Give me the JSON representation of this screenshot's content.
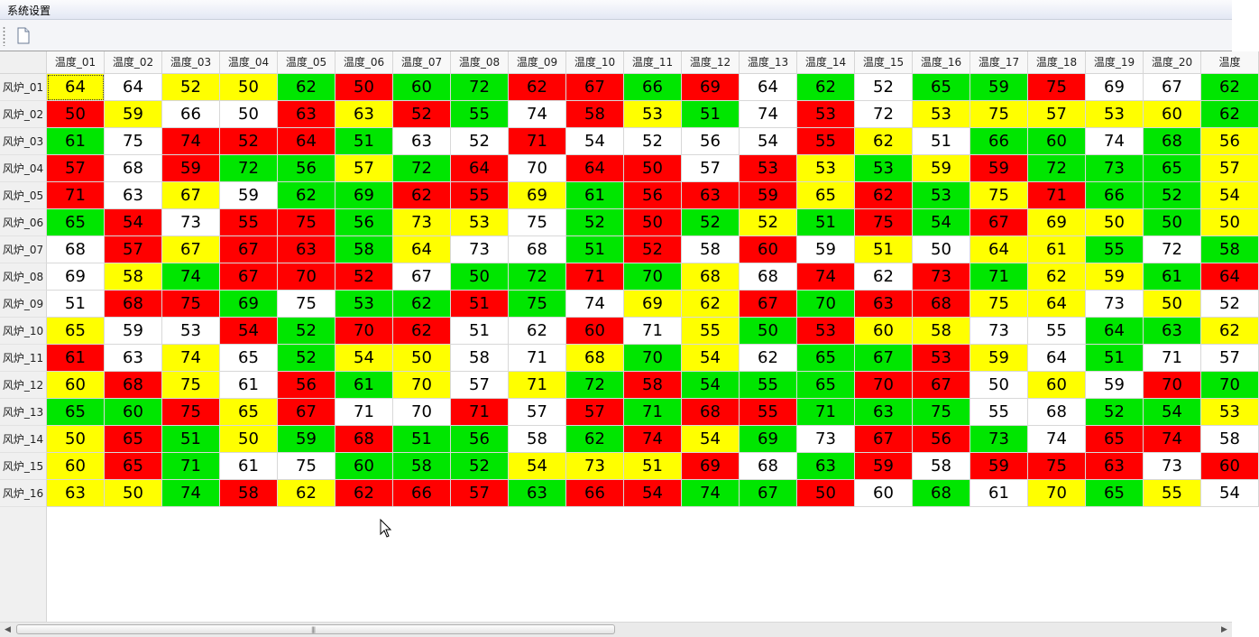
{
  "menu": {
    "title": "系统设置"
  },
  "toolbar": {
    "buttons": [
      {
        "icon": "new-document-icon"
      }
    ]
  },
  "colors": {
    "red": "#ff0000",
    "yellow": "#ffff00",
    "green": "#00e600",
    "white": "#ffffff"
  },
  "table": {
    "columns": [
      "温度_01",
      "温度_02",
      "温度_03",
      "温度_04",
      "温度_05",
      "温度_06",
      "温度_07",
      "温度_08",
      "温度_09",
      "温度_10",
      "温度_11",
      "温度_12",
      "温度_13",
      "温度_14",
      "温度_15",
      "温度_16",
      "温度_17",
      "温度_18",
      "温度_19",
      "温度_20",
      "温度"
    ],
    "selected_cell": [
      0,
      0
    ],
    "rows": [
      {
        "label": "风炉_01",
        "values": [
          "64",
          "64",
          "52",
          "50",
          "62",
          "50",
          "60",
          "72",
          "62",
          "67",
          "66",
          "69",
          "64",
          "62",
          "52",
          "65",
          "59",
          "75",
          "69",
          "67",
          "62"
        ],
        "colors": [
          "y",
          "w",
          "y",
          "y",
          "g",
          "r",
          "g",
          "g",
          "r",
          "r",
          "g",
          "r",
          "w",
          "g",
          "w",
          "g",
          "g",
          "r",
          "w",
          "w",
          "g"
        ]
      },
      {
        "label": "风炉_02",
        "values": [
          "50",
          "59",
          "66",
          "50",
          "63",
          "63",
          "52",
          "55",
          "74",
          "58",
          "53",
          "51",
          "74",
          "53",
          "72",
          "53",
          "75",
          "57",
          "53",
          "60",
          "62"
        ],
        "colors": [
          "r",
          "y",
          "w",
          "w",
          "r",
          "y",
          "r",
          "g",
          "w",
          "r",
          "y",
          "g",
          "w",
          "r",
          "w",
          "y",
          "y",
          "y",
          "y",
          "y",
          "g"
        ]
      },
      {
        "label": "风炉_03",
        "values": [
          "61",
          "75",
          "74",
          "52",
          "64",
          "51",
          "63",
          "52",
          "71",
          "54",
          "52",
          "56",
          "54",
          "55",
          "62",
          "51",
          "66",
          "60",
          "74",
          "68",
          "56"
        ],
        "colors": [
          "g",
          "w",
          "r",
          "r",
          "r",
          "g",
          "w",
          "w",
          "r",
          "w",
          "w",
          "w",
          "w",
          "r",
          "y",
          "w",
          "g",
          "g",
          "w",
          "g",
          "y"
        ]
      },
      {
        "label": "风炉_04",
        "values": [
          "57",
          "68",
          "59",
          "72",
          "56",
          "57",
          "72",
          "64",
          "70",
          "64",
          "50",
          "57",
          "53",
          "53",
          "53",
          "59",
          "59",
          "72",
          "73",
          "65",
          "57"
        ],
        "colors": [
          "r",
          "w",
          "r",
          "g",
          "g",
          "y",
          "g",
          "r",
          "w",
          "r",
          "r",
          "w",
          "r",
          "y",
          "g",
          "y",
          "r",
          "g",
          "g",
          "g",
          "y"
        ]
      },
      {
        "label": "风炉_05",
        "values": [
          "71",
          "63",
          "67",
          "59",
          "62",
          "69",
          "62",
          "55",
          "69",
          "61",
          "56",
          "63",
          "59",
          "65",
          "62",
          "53",
          "75",
          "71",
          "66",
          "52",
          "54"
        ],
        "colors": [
          "r",
          "w",
          "y",
          "w",
          "g",
          "g",
          "r",
          "r",
          "y",
          "g",
          "r",
          "r",
          "r",
          "y",
          "r",
          "g",
          "y",
          "r",
          "g",
          "g",
          "y"
        ]
      },
      {
        "label": "风炉_06",
        "values": [
          "65",
          "54",
          "73",
          "55",
          "75",
          "56",
          "73",
          "53",
          "75",
          "52",
          "50",
          "52",
          "52",
          "51",
          "75",
          "54",
          "67",
          "69",
          "50",
          "50",
          "50"
        ],
        "colors": [
          "g",
          "r",
          "w",
          "r",
          "r",
          "g",
          "y",
          "y",
          "w",
          "g",
          "r",
          "g",
          "y",
          "g",
          "r",
          "g",
          "r",
          "y",
          "y",
          "g",
          "y"
        ]
      },
      {
        "label": "风炉_07",
        "values": [
          "68",
          "57",
          "67",
          "67",
          "63",
          "58",
          "64",
          "73",
          "68",
          "51",
          "52",
          "58",
          "60",
          "59",
          "51",
          "50",
          "64",
          "61",
          "55",
          "72",
          "58"
        ],
        "colors": [
          "w",
          "r",
          "y",
          "r",
          "r",
          "g",
          "y",
          "w",
          "w",
          "g",
          "r",
          "w",
          "r",
          "w",
          "y",
          "w",
          "y",
          "y",
          "g",
          "w",
          "g"
        ]
      },
      {
        "label": "风炉_08",
        "values": [
          "69",
          "58",
          "74",
          "67",
          "70",
          "52",
          "67",
          "50",
          "72",
          "71",
          "70",
          "68",
          "68",
          "74",
          "62",
          "73",
          "71",
          "62",
          "59",
          "61",
          "64"
        ],
        "colors": [
          "w",
          "y",
          "g",
          "r",
          "r",
          "r",
          "w",
          "g",
          "g",
          "r",
          "g",
          "y",
          "w",
          "r",
          "w",
          "r",
          "g",
          "y",
          "y",
          "g",
          "r"
        ]
      },
      {
        "label": "风炉_09",
        "values": [
          "51",
          "68",
          "75",
          "69",
          "75",
          "53",
          "62",
          "51",
          "75",
          "74",
          "69",
          "62",
          "67",
          "70",
          "63",
          "68",
          "75",
          "64",
          "73",
          "50",
          "52"
        ],
        "colors": [
          "w",
          "r",
          "r",
          "g",
          "w",
          "g",
          "g",
          "r",
          "g",
          "w",
          "y",
          "y",
          "r",
          "g",
          "r",
          "r",
          "y",
          "y",
          "w",
          "y",
          "w"
        ]
      },
      {
        "label": "风炉_10",
        "values": [
          "65",
          "59",
          "53",
          "54",
          "52",
          "70",
          "62",
          "51",
          "62",
          "60",
          "71",
          "55",
          "50",
          "53",
          "60",
          "58",
          "73",
          "55",
          "64",
          "63",
          "62"
        ],
        "colors": [
          "y",
          "w",
          "w",
          "r",
          "g",
          "r",
          "r",
          "w",
          "w",
          "r",
          "w",
          "y",
          "g",
          "r",
          "y",
          "y",
          "w",
          "w",
          "g",
          "g",
          "y"
        ]
      },
      {
        "label": "风炉_11",
        "values": [
          "61",
          "63",
          "74",
          "65",
          "52",
          "54",
          "50",
          "58",
          "71",
          "68",
          "70",
          "54",
          "62",
          "65",
          "67",
          "53",
          "59",
          "64",
          "51",
          "71",
          "57"
        ],
        "colors": [
          "r",
          "w",
          "y",
          "w",
          "g",
          "y",
          "y",
          "w",
          "w",
          "y",
          "g",
          "y",
          "w",
          "g",
          "g",
          "r",
          "y",
          "w",
          "g",
          "w",
          "w"
        ]
      },
      {
        "label": "风炉_12",
        "values": [
          "60",
          "68",
          "75",
          "61",
          "56",
          "61",
          "70",
          "57",
          "71",
          "72",
          "58",
          "54",
          "55",
          "65",
          "70",
          "67",
          "50",
          "60",
          "59",
          "70",
          "70"
        ],
        "colors": [
          "y",
          "r",
          "y",
          "w",
          "r",
          "g",
          "y",
          "w",
          "y",
          "g",
          "r",
          "g",
          "g",
          "g",
          "r",
          "r",
          "w",
          "y",
          "w",
          "r",
          "g"
        ]
      },
      {
        "label": "风炉_13",
        "values": [
          "65",
          "60",
          "75",
          "65",
          "67",
          "71",
          "70",
          "71",
          "57",
          "57",
          "71",
          "68",
          "55",
          "71",
          "63",
          "75",
          "55",
          "68",
          "52",
          "54",
          "53"
        ],
        "colors": [
          "g",
          "g",
          "r",
          "y",
          "r",
          "w",
          "w",
          "r",
          "w",
          "r",
          "g",
          "r",
          "r",
          "g",
          "g",
          "g",
          "w",
          "w",
          "g",
          "g",
          "y"
        ]
      },
      {
        "label": "风炉_14",
        "values": [
          "50",
          "65",
          "51",
          "50",
          "59",
          "68",
          "51",
          "56",
          "58",
          "62",
          "74",
          "54",
          "69",
          "73",
          "67",
          "56",
          "73",
          "74",
          "65",
          "74",
          "58"
        ],
        "colors": [
          "y",
          "r",
          "g",
          "y",
          "g",
          "r",
          "g",
          "g",
          "w",
          "g",
          "r",
          "y",
          "g",
          "w",
          "r",
          "r",
          "g",
          "w",
          "r",
          "r",
          "w"
        ]
      },
      {
        "label": "风炉_15",
        "values": [
          "60",
          "65",
          "71",
          "61",
          "75",
          "60",
          "58",
          "52",
          "54",
          "73",
          "51",
          "69",
          "68",
          "63",
          "59",
          "58",
          "59",
          "75",
          "63",
          "73",
          "60"
        ],
        "colors": [
          "y",
          "r",
          "g",
          "w",
          "w",
          "g",
          "g",
          "g",
          "y",
          "y",
          "y",
          "r",
          "w",
          "g",
          "r",
          "w",
          "r",
          "r",
          "r",
          "w",
          "r"
        ]
      },
      {
        "label": "风炉_16",
        "values": [
          "63",
          "50",
          "74",
          "58",
          "62",
          "62",
          "66",
          "57",
          "63",
          "66",
          "54",
          "74",
          "67",
          "50",
          "60",
          "68",
          "61",
          "70",
          "65",
          "55",
          "54"
        ],
        "colors": [
          "y",
          "y",
          "g",
          "r",
          "y",
          "r",
          "r",
          "r",
          "g",
          "r",
          "r",
          "g",
          "g",
          "r",
          "w",
          "g",
          "w",
          "y",
          "g",
          "y",
          "w"
        ]
      }
    ]
  },
  "scrollbar": {
    "left_arrow": "◀",
    "right_arrow": "▶",
    "thumb_grip": "|||"
  }
}
